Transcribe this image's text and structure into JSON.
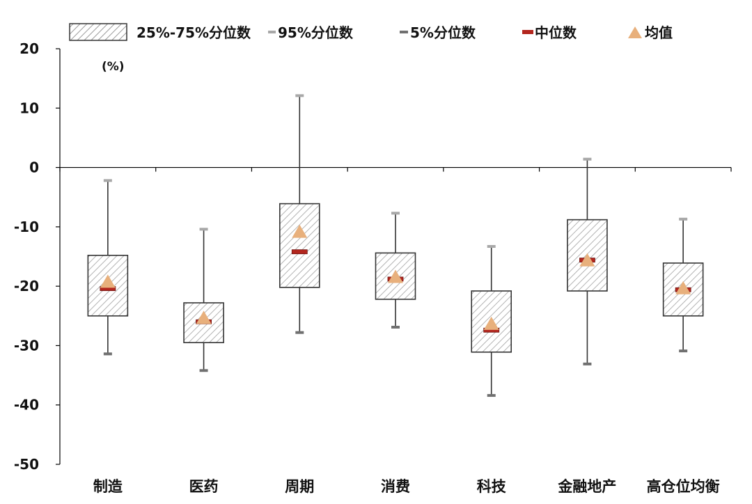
{
  "chart_data": {
    "type": "boxplot",
    "title": "",
    "unit": "(%)",
    "categories": [
      "制造",
      "医药",
      "周期",
      "消费",
      "科技",
      "金融地产",
      "高仓位均衡"
    ],
    "ylim": [
      -50,
      20
    ],
    "yticks": [
      20,
      10,
      0,
      -10,
      -20,
      -30,
      -40,
      -50
    ],
    "legend": {
      "position": "top",
      "box_label": "25%-75%分位数",
      "p95_label": "95%分位数",
      "p5_label": "5%分位数",
      "median_label": "中位数",
      "mean_label": "均值"
    },
    "series": {
      "p95": [
        -2.2,
        -10.4,
        12.1,
        -7.7,
        -13.3,
        1.4,
        -8.7
      ],
      "p75": [
        -14.8,
        -22.8,
        -6.1,
        -14.4,
        -20.8,
        -8.8,
        -16.1
      ],
      "median": [
        -20.4,
        -26.0,
        -14.2,
        -18.8,
        -27.4,
        -15.6,
        -20.6
      ],
      "mean": [
        -19.2,
        -25.3,
        -10.8,
        -18.4,
        -26.3,
        -15.6,
        -20.3
      ],
      "p25": [
        -25.0,
        -29.5,
        -20.2,
        -22.2,
        -31.1,
        -20.8,
        -25.0
      ],
      "p5": [
        -31.4,
        -34.2,
        -27.8,
        -26.9,
        -38.4,
        -33.1,
        -30.9
      ]
    },
    "colors": {
      "box_border": "#333333",
      "box_hatch": "#b3b3b3",
      "whisker": "#333333",
      "p95_cap": "#a8a8a8",
      "p5_cap": "#707070",
      "median": "#b3261e",
      "mean": "#e8b07c",
      "axis": "#000000"
    }
  }
}
